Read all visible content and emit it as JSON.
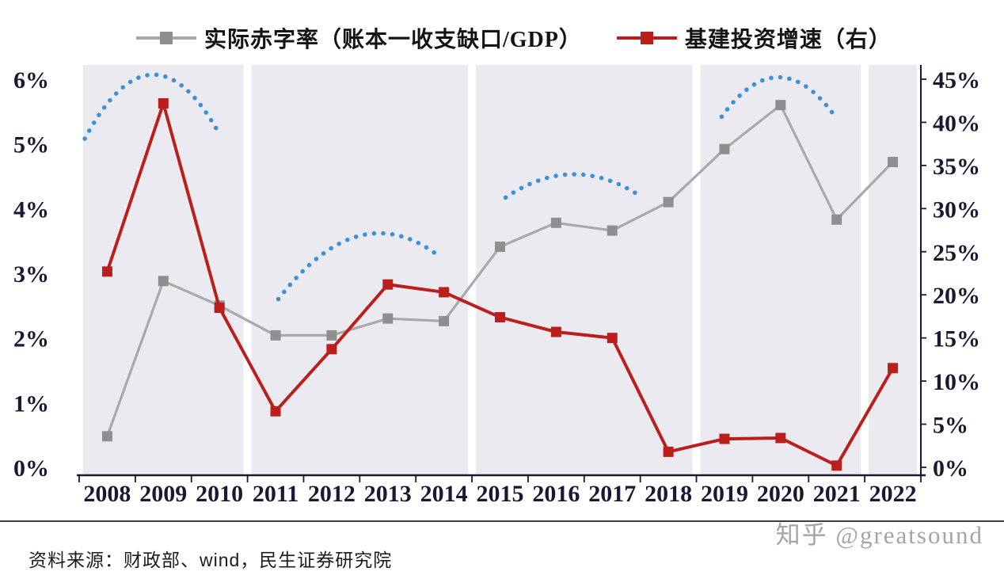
{
  "legend": {
    "series1_label": "实际赤字率（账本一收支缺口/GDP）",
    "series2_label": "基建投资增速（右）"
  },
  "footer": {
    "source": "资料来源：财政部、wind，民生证券研究院",
    "watermark": "知乎 @greatsound"
  },
  "chart_data": {
    "type": "line",
    "title": "",
    "categories": [
      "2008",
      "2009",
      "2010",
      "2011",
      "2012",
      "2013",
      "2014",
      "2015",
      "2016",
      "2017",
      "2018",
      "2019",
      "2020",
      "2021",
      "2022"
    ],
    "series": [
      {
        "name": "实际赤字率（账本一收支缺口/GDP）",
        "axis": "left",
        "color": "#a9a9a9",
        "marker_color": "#8f8f8f",
        "marker": "square",
        "values": [
          0.48,
          2.88,
          2.5,
          2.04,
          2.04,
          2.3,
          2.26,
          3.41,
          3.78,
          3.66,
          4.1,
          4.92,
          5.6,
          3.83,
          4.72
        ]
      },
      {
        "name": "基建投资增速（右）",
        "axis": "right",
        "color": "#ba1f1c",
        "marker_color": "#ba1f1c",
        "marker": "square",
        "values": [
          22.7,
          42.2,
          18.5,
          6.5,
          13.7,
          21.2,
          20.3,
          17.4,
          15.7,
          15.0,
          1.8,
          3.3,
          3.4,
          0.2,
          11.5
        ]
      }
    ],
    "left_axis": {
      "min": 0,
      "max": 6,
      "step": 1,
      "ticks": [
        "0%",
        "1%",
        "2%",
        "3%",
        "4%",
        "5%",
        "6%"
      ]
    },
    "right_axis": {
      "min": 0,
      "max": 45,
      "step": 5,
      "ticks": [
        "0%",
        "5%",
        "10%",
        "15%",
        "20%",
        "25%",
        "30%",
        "35%",
        "40%",
        "45%"
      ]
    },
    "bands": [
      [
        2008,
        2010
      ],
      [
        2011,
        2014
      ],
      [
        2015,
        2018
      ],
      [
        2019,
        2021
      ],
      [
        2022,
        2022
      ]
    ],
    "arcs": [
      {
        "x_start": 2007.6,
        "y_start": 5.08,
        "x_end": 2010.0,
        "y_end": 5.15,
        "apex": 6.07
      },
      {
        "x_start": 2011.05,
        "y_start": 2.6,
        "x_end": 2013.95,
        "y_end": 3.24,
        "apex": 3.58
      },
      {
        "x_start": 2015.1,
        "y_start": 4.17,
        "x_end": 2017.45,
        "y_end": 4.22,
        "apex": 4.53
      },
      {
        "x_start": 2018.95,
        "y_start": 5.42,
        "x_end": 2020.95,
        "y_end": 5.45,
        "apex": 6.03
      }
    ],
    "band_color": "#eceaf1",
    "arc_color": "#3d8fd8",
    "axis_color": "#191932",
    "grid": false,
    "legend_position": "top"
  }
}
